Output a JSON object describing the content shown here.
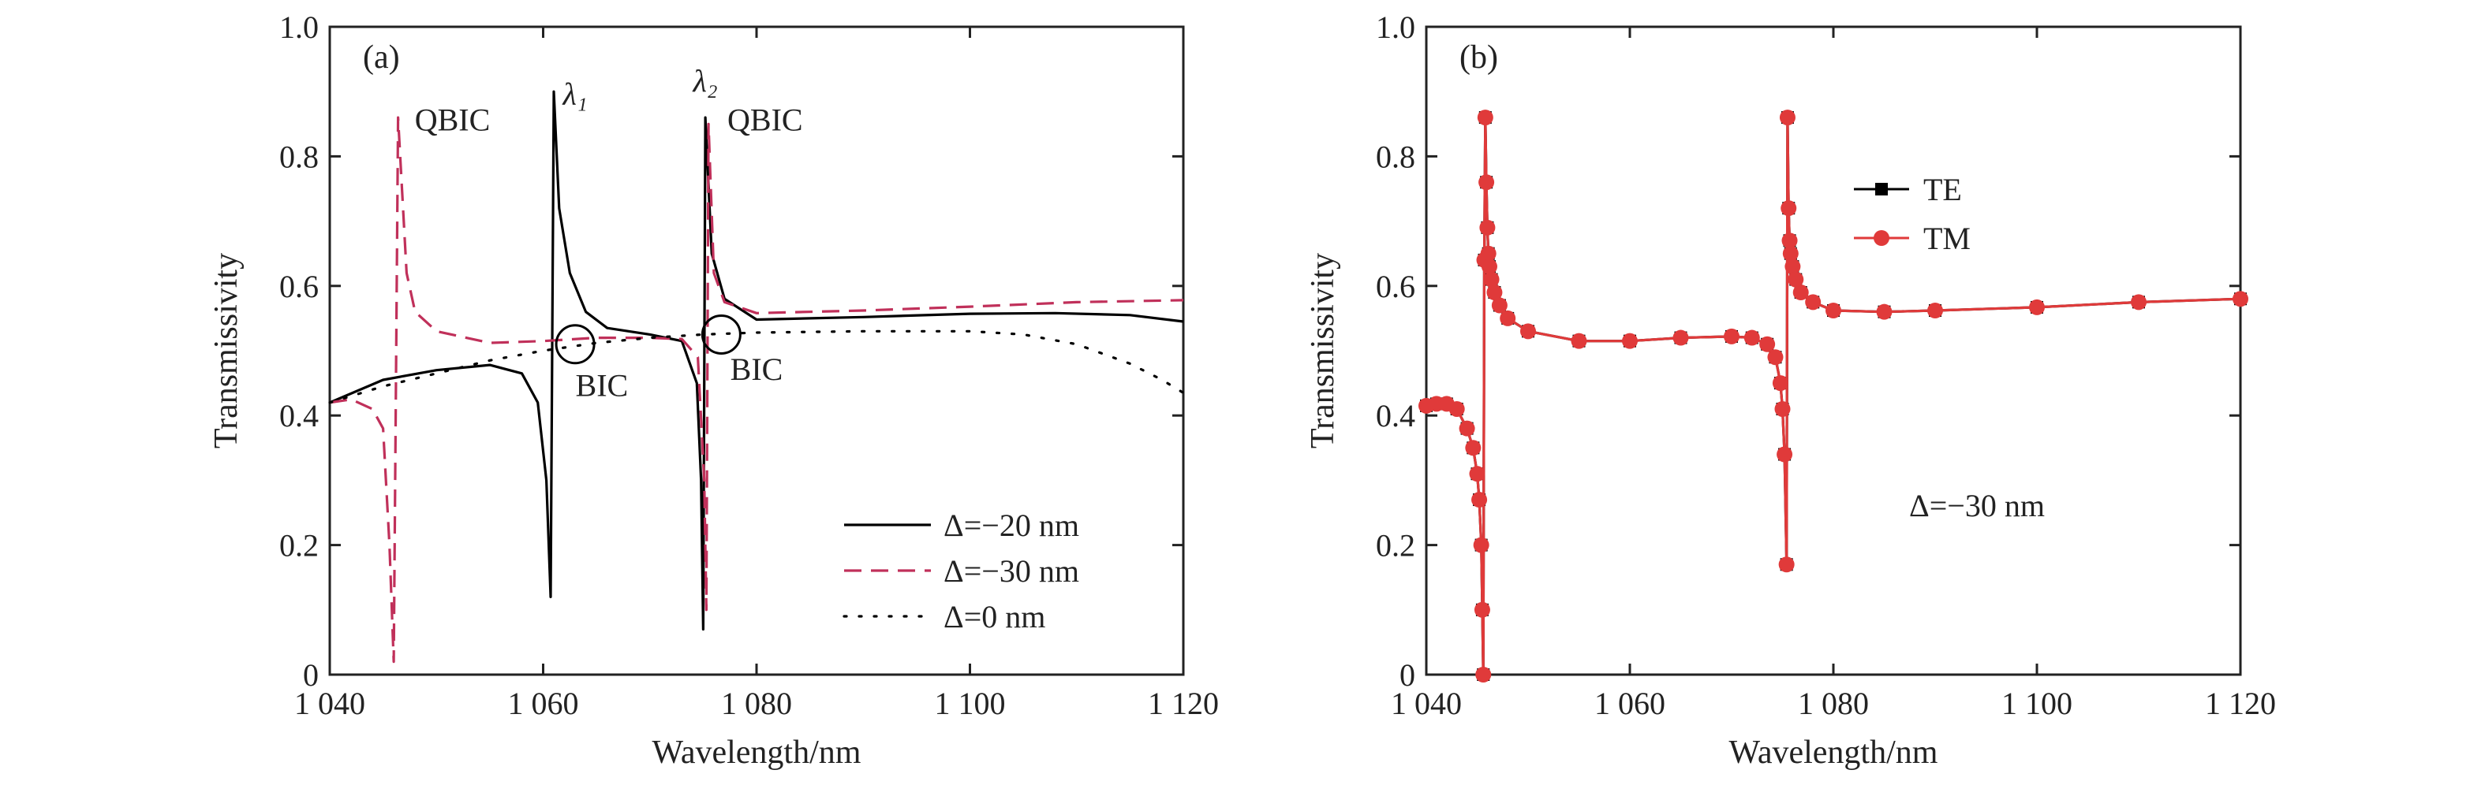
{
  "chart_data": [
    {
      "type": "line",
      "panel_label": "(a)",
      "xlabel": "Wavelength/nm",
      "ylabel": "Transmissivity",
      "xlim": [
        1040,
        1120
      ],
      "ylim": [
        0,
        1.0
      ],
      "xticks": [
        1040,
        1060,
        1080,
        1100,
        1120
      ],
      "xtick_labels": [
        "1 040",
        "1 060",
        "1 080",
        "1 100",
        "1 120"
      ],
      "yticks": [
        0,
        0.2,
        0.4,
        0.6,
        0.8,
        1.0
      ],
      "ytick_labels": [
        "0",
        "0.2",
        "0.4",
        "0.6",
        "0.8",
        "1.0"
      ],
      "grid": false,
      "legend_position": "bottom-right",
      "series": [
        {
          "name": "Δ=−20 nm",
          "color": "#000000",
          "style": "solid",
          "x": [
            1040,
            1045,
            1050,
            1055,
            1058,
            1059.5,
            1060.3,
            1060.7,
            1061.0,
            1061.5,
            1062.5,
            1064,
            1066,
            1070,
            1073,
            1074.4,
            1074.8,
            1075.0,
            1075.2,
            1075.8,
            1077,
            1080,
            1090,
            1100,
            1108,
            1115,
            1120
          ],
          "y": [
            0.42,
            0.455,
            0.47,
            0.478,
            0.465,
            0.42,
            0.3,
            0.12,
            0.9,
            0.72,
            0.62,
            0.56,
            0.535,
            0.525,
            0.515,
            0.45,
            0.3,
            0.07,
            0.86,
            0.65,
            0.58,
            0.548,
            0.552,
            0.557,
            0.558,
            0.555,
            0.545
          ]
        },
        {
          "name": "Δ=−30 nm",
          "color": "#c0305a",
          "style": "dashed",
          "x": [
            1040,
            1042,
            1044,
            1045,
            1045.6,
            1046,
            1046.4,
            1047.2,
            1048,
            1050,
            1055,
            1060,
            1065,
            1070,
            1073,
            1074.5,
            1075.1,
            1075.3,
            1075.5,
            1076,
            1077,
            1080,
            1090,
            1100,
            1110,
            1120
          ],
          "y": [
            0.42,
            0.425,
            0.41,
            0.38,
            0.2,
            0.02,
            0.86,
            0.62,
            0.56,
            0.53,
            0.512,
            0.515,
            0.52,
            0.52,
            0.518,
            0.49,
            0.3,
            0.1,
            0.85,
            0.62,
            0.575,
            0.558,
            0.562,
            0.568,
            0.575,
            0.578
          ]
        },
        {
          "name": "Δ=0 nm",
          "color": "#000000",
          "style": "dotted",
          "x": [
            1040,
            1045,
            1050,
            1055,
            1060,
            1065,
            1070,
            1075,
            1080,
            1090,
            1100,
            1105,
            1110,
            1115,
            1118,
            1120
          ],
          "y": [
            0.42,
            0.445,
            0.465,
            0.485,
            0.5,
            0.512,
            0.52,
            0.525,
            0.528,
            0.53,
            0.53,
            0.525,
            0.51,
            0.48,
            0.455,
            0.435
          ]
        }
      ],
      "annotations": [
        {
          "text": "QBIC",
          "x": 1051.5,
          "y": 0.84
        },
        {
          "text": "λ₁",
          "x": 1063,
          "y": 0.88
        },
        {
          "text": "λ₂",
          "x": 1075.2,
          "y": 0.9
        },
        {
          "text": "QBIC",
          "x": 1080.8,
          "y": 0.84
        },
        {
          "text": "BIC",
          "x": 1065.5,
          "y": 0.43
        },
        {
          "text": "BIC",
          "x": 1080,
          "y": 0.455
        }
      ],
      "circles": [
        {
          "x": 1063,
          "y": 0.51
        },
        {
          "x": 1076.7,
          "y": 0.525
        }
      ]
    },
    {
      "type": "line",
      "panel_label": "(b)",
      "xlabel": "Wavelength/nm",
      "ylabel": "Transmissivity",
      "xlim": [
        1040,
        1120
      ],
      "ylim": [
        0,
        1.0
      ],
      "xticks": [
        1040,
        1060,
        1080,
        1100,
        1120
      ],
      "xtick_labels": [
        "1 040",
        "1 060",
        "1 080",
        "1 100",
        "1 120"
      ],
      "yticks": [
        0,
        0.2,
        0.4,
        0.6,
        0.8,
        1.0
      ],
      "ytick_labels": [
        "0",
        "0.2",
        "0.4",
        "0.6",
        "0.8",
        "1.0"
      ],
      "grid": false,
      "legend_position": "upper-middle",
      "annotation": "Δ=−30 nm",
      "series": [
        {
          "name": "TE",
          "color": "#000000",
          "marker": "square",
          "x": [
            1040,
            1041,
            1042,
            1043,
            1044,
            1044.6,
            1045.0,
            1045.2,
            1045.4,
            1045.5,
            1045.6,
            1045.7,
            1045.8,
            1045.9,
            1046.0,
            1046.1,
            1046.2,
            1046.4,
            1046.7,
            1047.2,
            1048,
            1050,
            1055,
            1060,
            1065,
            1070,
            1072,
            1073.5,
            1074.3,
            1074.8,
            1075.0,
            1075.2,
            1075.4,
            1075.5,
            1075.6,
            1075.7,
            1075.8,
            1076.0,
            1076.3,
            1076.8,
            1078,
            1080,
            1085,
            1090,
            1100,
            1110,
            1120
          ],
          "y": [
            0.415,
            0.418,
            0.418,
            0.41,
            0.38,
            0.35,
            0.31,
            0.27,
            0.2,
            0.1,
            0.0,
            0.64,
            0.86,
            0.76,
            0.69,
            0.65,
            0.63,
            0.61,
            0.59,
            0.57,
            0.55,
            0.53,
            0.515,
            0.515,
            0.52,
            0.522,
            0.52,
            0.51,
            0.49,
            0.45,
            0.41,
            0.34,
            0.17,
            0.86,
            0.72,
            0.67,
            0.65,
            0.63,
            0.61,
            0.59,
            0.575,
            0.562,
            0.56,
            0.562,
            0.567,
            0.575,
            0.58
          ]
        },
        {
          "name": "TM",
          "color": "#e03a3a",
          "marker": "circle",
          "x": [
            1040,
            1041,
            1042,
            1043,
            1044,
            1044.6,
            1045.0,
            1045.2,
            1045.4,
            1045.5,
            1045.6,
            1045.7,
            1045.8,
            1045.9,
            1046.0,
            1046.1,
            1046.2,
            1046.4,
            1046.7,
            1047.2,
            1048,
            1050,
            1055,
            1060,
            1065,
            1070,
            1072,
            1073.5,
            1074.3,
            1074.8,
            1075.0,
            1075.2,
            1075.4,
            1075.5,
            1075.6,
            1075.7,
            1075.8,
            1076.0,
            1076.3,
            1076.8,
            1078,
            1080,
            1085,
            1090,
            1100,
            1110,
            1120
          ],
          "y": [
            0.415,
            0.418,
            0.418,
            0.41,
            0.38,
            0.35,
            0.31,
            0.27,
            0.2,
            0.1,
            0.0,
            0.64,
            0.86,
            0.76,
            0.69,
            0.65,
            0.63,
            0.61,
            0.59,
            0.57,
            0.55,
            0.53,
            0.515,
            0.515,
            0.52,
            0.522,
            0.52,
            0.51,
            0.49,
            0.45,
            0.41,
            0.34,
            0.17,
            0.86,
            0.72,
            0.67,
            0.65,
            0.63,
            0.61,
            0.59,
            0.575,
            0.562,
            0.56,
            0.562,
            0.567,
            0.575,
            0.58
          ]
        }
      ]
    }
  ]
}
